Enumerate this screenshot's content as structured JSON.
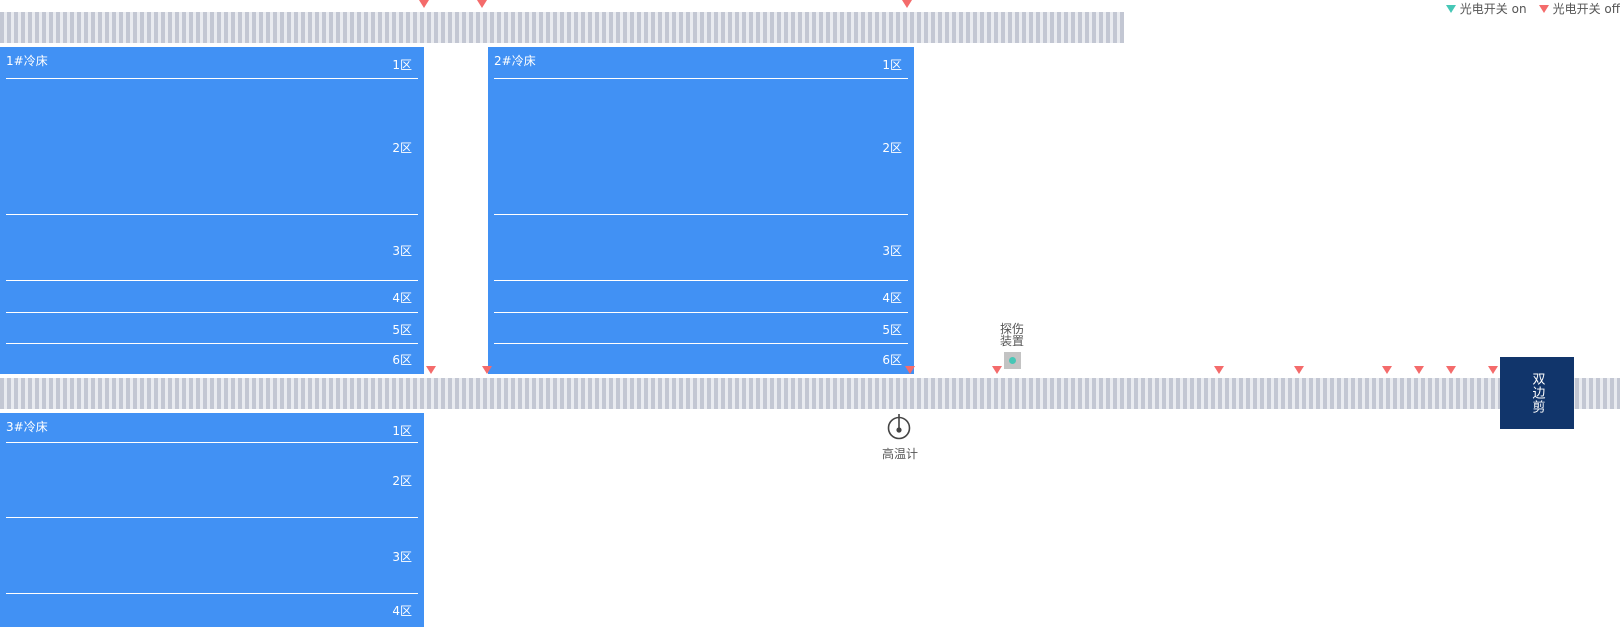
{
  "legend": {
    "on_label": "光电开关 on",
    "off_label": "光电开关 off",
    "on_color": "#46c7b6",
    "off_color": "#f46b6b"
  },
  "beds": [
    {
      "title": "1#冷床",
      "zones": [
        "1区",
        "2区",
        "3区",
        "4区",
        "5区",
        "6区"
      ]
    },
    {
      "title": "2#冷床",
      "zones": [
        "1区",
        "2区",
        "3区",
        "4区",
        "5区",
        "6区"
      ]
    },
    {
      "title": "3#冷床",
      "zones": [
        "1区",
        "2区",
        "3区",
        "4区"
      ]
    }
  ],
  "devices": {
    "flaw_detector_label": "探伤装置",
    "thermometer_label": "高温计",
    "double_side_shear_label": "双边剪"
  },
  "colors": {
    "bed_blue": "#4191f4",
    "shear_navy": "#11356b",
    "roller_gray": "#c3c7d3"
  },
  "photo_switches": [
    {
      "state": "off"
    },
    {
      "state": "off"
    },
    {
      "state": "off"
    },
    {
      "state": "off"
    },
    {
      "state": "off"
    },
    {
      "state": "off"
    },
    {
      "state": "off"
    },
    {
      "state": "off"
    },
    {
      "state": "off"
    },
    {
      "state": "off"
    },
    {
      "state": "off"
    },
    {
      "state": "off"
    },
    {
      "state": "off"
    }
  ]
}
